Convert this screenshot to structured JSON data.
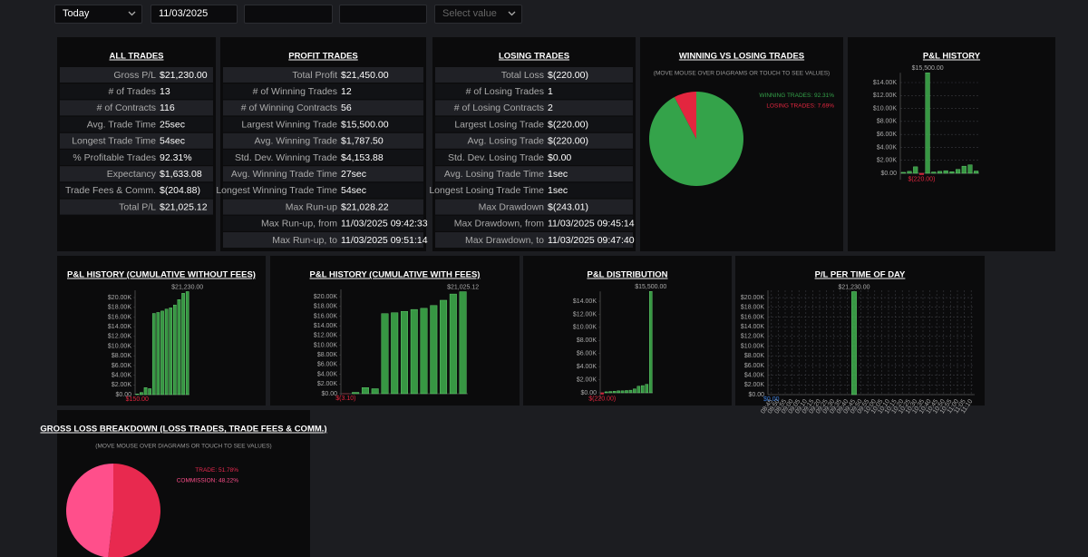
{
  "toolbar": {
    "period": "Today",
    "date": "11/03/2025",
    "select_placeholder": "Select value"
  },
  "tables": [
    {
      "title": "ALL TRADES",
      "rows": [
        [
          "Gross P/L",
          "$21,230.00"
        ],
        [
          "# of Trades",
          "13"
        ],
        [
          "# of Contracts",
          "116"
        ],
        [
          "Avg. Trade Time",
          "25sec"
        ],
        [
          "Longest Trade Time",
          "54sec"
        ],
        [
          "% Profitable Trades",
          "92.31%"
        ],
        [
          "Expectancy",
          "$1,633.08"
        ],
        [
          "Trade Fees & Comm.",
          "$(204.88)"
        ],
        [
          "Total P/L",
          "$21,025.12"
        ]
      ]
    },
    {
      "title": "PROFIT TRADES",
      "rows": [
        [
          "Total Profit",
          "$21,450.00"
        ],
        [
          "# of Winning Trades",
          "12"
        ],
        [
          "# of Winning Contracts",
          "56"
        ],
        [
          "Largest Winning Trade",
          "$15,500.00"
        ],
        [
          "Avg. Winning Trade",
          "$1,787.50"
        ],
        [
          "Std. Dev. Winning Trade",
          "$4,153.88"
        ],
        [
          "Avg. Winning Trade Time",
          "27sec"
        ],
        [
          "Longest Winning Trade Time",
          "54sec"
        ],
        [
          "Max Run-up",
          "$21,028.22"
        ],
        [
          "Max Run-up, from",
          "11/03/2025 09:42:33"
        ],
        [
          "Max Run-up, to",
          "11/03/2025 09:51:14"
        ]
      ]
    },
    {
      "title": "LOSING TRADES",
      "rows": [
        [
          "Total Loss",
          "$(220.00)"
        ],
        [
          "# of Losing Trades",
          "1"
        ],
        [
          "# of Losing Contracts",
          "2"
        ],
        [
          "Largest Losing Trade",
          "$(220.00)"
        ],
        [
          "Avg. Losing Trade",
          "$(220.00)"
        ],
        [
          "Std. Dev. Losing Trade",
          "$0.00"
        ],
        [
          "Avg. Losing Trade Time",
          "1sec"
        ],
        [
          "Longest Losing Trade Time",
          "1sec"
        ],
        [
          "Max Drawdown",
          "$(243.01)"
        ],
        [
          "Max Drawdown, from",
          "11/03/2025 09:45:14"
        ],
        [
          "Max Drawdown, to",
          "11/03/2025 09:47:40"
        ]
      ]
    }
  ],
  "chart_data": [
    {
      "type": "pie",
      "title": "WINNING VS LOSING TRADES",
      "subtitle": "(MOVE MOUSE OVER DIAGRAMS OR TOUCH TO SEE VALUES)",
      "categories": [
        "WINNING TRADES",
        "LOSING TRADES"
      ],
      "values": [
        92.31,
        7.69
      ],
      "value_labels": [
        "92.31%",
        "7.69%"
      ],
      "colors": [
        "#34a34a",
        "#e3263f"
      ]
    },
    {
      "type": "bar",
      "title": "P&L HISTORY",
      "values": [
        150,
        300,
        1000,
        -220,
        15500,
        200,
        300,
        400,
        250,
        600,
        1100,
        1300,
        350
      ],
      "max_label": "$15,500.00",
      "min_label": "$(220.00)",
      "color": "#3fb04d",
      "negative_color": "#e3263f",
      "min_label_color": "#e3263f",
      "grid": true,
      "ylim": [
        -1000,
        15500
      ],
      "yticks": [
        {
          "value": 0,
          "label": "$0.00"
        },
        {
          "value": 2000,
          "label": "$2.00K"
        },
        {
          "value": 4000,
          "label": "$4.00K"
        },
        {
          "value": 6000,
          "label": "$6.00K"
        },
        {
          "value": 8000,
          "label": "$8.00K"
        },
        {
          "value": 10000,
          "label": "$10.00K"
        },
        {
          "value": 12000,
          "label": "$12.00K"
        },
        {
          "value": 14000,
          "label": "$14.00K"
        }
      ]
    },
    {
      "type": "bar",
      "title": "P&L HISTORY (CUMULATIVE WITHOUT FEES)",
      "values": [
        150,
        450,
        1450,
        1230,
        16730,
        16930,
        17230,
        17630,
        17880,
        18480,
        19580,
        20880,
        21230
      ],
      "max_label": "$21,230.00",
      "min_label": "$150.00",
      "color": "#3fb04d",
      "negative_color": "#e3263f",
      "min_label_color": "#e3263f",
      "grid": false,
      "ylim": [
        0,
        21500
      ],
      "yticks": [
        {
          "value": 0,
          "label": "$0.00"
        },
        {
          "value": 2000,
          "label": "$2.00K"
        },
        {
          "value": 4000,
          "label": "$4.00K"
        },
        {
          "value": 6000,
          "label": "$6.00K"
        },
        {
          "value": 8000,
          "label": "$8.00K"
        },
        {
          "value": 10000,
          "label": "$10.00K"
        },
        {
          "value": 12000,
          "label": "$12.00K"
        },
        {
          "value": 14000,
          "label": "$14.00K"
        },
        {
          "value": 16000,
          "label": "$16.00K"
        },
        {
          "value": 18000,
          "label": "$18.00K"
        },
        {
          "value": 20000,
          "label": "$20.00K"
        }
      ]
    },
    {
      "type": "bar",
      "title": "P&L HISTORY (CUMULATIVE WITH FEES)",
      "values": [
        -3.1,
        280,
        1265,
        1030,
        16510,
        16695,
        16980,
        17365,
        17600,
        18180,
        19265,
        20550,
        21025.12
      ],
      "max_label": "$21,025.12",
      "min_label": "$(3.10)",
      "color": "#3fb04d",
      "negative_color": "#e3263f",
      "min_label_color": "#e3263f",
      "grid": false,
      "ylim": [
        -300,
        21500
      ],
      "yticks": [
        {
          "value": 0,
          "label": "$0.00"
        },
        {
          "value": 2000,
          "label": "$2.00K"
        },
        {
          "value": 4000,
          "label": "$4.00K"
        },
        {
          "value": 6000,
          "label": "$6.00K"
        },
        {
          "value": 8000,
          "label": "$8.00K"
        },
        {
          "value": 10000,
          "label": "$10.00K"
        },
        {
          "value": 12000,
          "label": "$12.00K"
        },
        {
          "value": 14000,
          "label": "$14.00K"
        },
        {
          "value": 16000,
          "label": "$16.00K"
        },
        {
          "value": 18000,
          "label": "$18.00K"
        },
        {
          "value": 20000,
          "label": "$20.00K"
        }
      ]
    },
    {
      "type": "bar",
      "title": "P&L DISTRIBUTION",
      "values": [
        -220,
        150,
        200,
        250,
        300,
        300,
        350,
        400,
        600,
        1000,
        1100,
        1300,
        15500
      ],
      "max_label": "$15,500.00",
      "min_label": "$(220.00)",
      "color": "#3fb04d",
      "negative_color": "#e3263f",
      "min_label_color": "#e3263f",
      "grid": false,
      "ylim": [
        -1000,
        15500
      ],
      "yticks": [
        {
          "value": 0,
          "label": "$0.00"
        },
        {
          "value": 2000,
          "label": "$2.00K"
        },
        {
          "value": 4000,
          "label": "$4.00K"
        },
        {
          "value": 6000,
          "label": "$6.00K"
        },
        {
          "value": 8000,
          "label": "$8.00K"
        },
        {
          "value": 10000,
          "label": "$10.00K"
        },
        {
          "value": 12000,
          "label": "$12.00K"
        },
        {
          "value": 14000,
          "label": "$14.00K"
        }
      ]
    },
    {
      "type": "bar",
      "title": "P/L PER TIME OF DAY",
      "categories": [
        "08:45",
        "08:50",
        "08:55",
        "09:00",
        "09:05",
        "09:10",
        "09:15",
        "09:20",
        "09:25",
        "09:30",
        "09:35",
        "09:40",
        "09:45",
        "09:50",
        "09:55",
        "10:00",
        "10:05",
        "10:10",
        "10:15",
        "10:20",
        "10:25",
        "10:30",
        "10:35",
        "10:40",
        "10:45",
        "10:50",
        "10:55",
        "11:00",
        "11:05",
        "11:10"
      ],
      "values": [
        0,
        0,
        0,
        0,
        0,
        0,
        0,
        0,
        0,
        0,
        0,
        0,
        21230,
        0,
        0,
        0,
        0,
        0,
        0,
        0,
        0,
        0,
        0,
        0,
        0,
        0,
        0,
        0,
        0,
        0
      ],
      "max_label": "$21,230.00",
      "min_label": "$0.00",
      "color": "#3fb04d",
      "negative_color": "#e3263f",
      "min_label_color": "#3a7bd5",
      "grid": true,
      "ylim": [
        0,
        21500
      ],
      "yticks": [
        {
          "value": 0,
          "label": "$0.00"
        },
        {
          "value": 2000,
          "label": "$2.00K"
        },
        {
          "value": 4000,
          "label": "$4.00K"
        },
        {
          "value": 6000,
          "label": "$6.00K"
        },
        {
          "value": 8000,
          "label": "$8.00K"
        },
        {
          "value": 10000,
          "label": "$10.00K"
        },
        {
          "value": 12000,
          "label": "$12.00K"
        },
        {
          "value": 14000,
          "label": "$14.00K"
        },
        {
          "value": 16000,
          "label": "$16.00K"
        },
        {
          "value": 18000,
          "label": "$18.00K"
        },
        {
          "value": 20000,
          "label": "$20.00K"
        }
      ]
    },
    {
      "type": "pie",
      "title": "GROSS LOSS BREAKDOWN (LOSS TRADES, TRADE FEES & COMM.)",
      "subtitle": "(MOVE MOUSE OVER DIAGRAMS OR TOUCH TO SEE VALUES)",
      "categories": [
        "TRADE",
        "COMMISSION"
      ],
      "values": [
        51.78,
        48.22
      ],
      "value_labels": [
        "51.78%",
        "48.22%"
      ],
      "colors": [
        "#e8294f",
        "#ff4f8b"
      ]
    }
  ]
}
